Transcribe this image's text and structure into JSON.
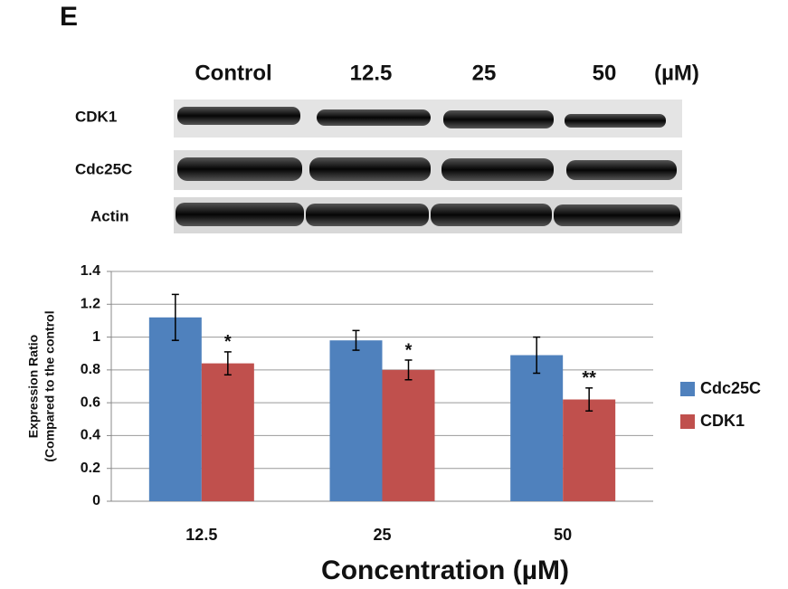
{
  "panel_label": "E",
  "blot": {
    "lanes": [
      "Control",
      "12.5",
      "25",
      "50"
    ],
    "unit": "(µM)",
    "rows": [
      "CDK1",
      "Cdc25C",
      "Actin"
    ]
  },
  "chart_data": {
    "type": "bar",
    "categories": [
      "12.5",
      "25",
      "50"
    ],
    "series": [
      {
        "name": "Cdc25C",
        "color": "#4f81bd",
        "values": [
          1.12,
          0.98,
          0.89
        ],
        "errors": [
          0.14,
          0.06,
          0.11
        ]
      },
      {
        "name": "CDK1",
        "color": "#c0504d",
        "values": [
          0.84,
          0.8,
          0.62
        ],
        "errors": [
          0.07,
          0.06,
          0.07
        ],
        "significance": [
          "*",
          "*",
          "**"
        ]
      }
    ],
    "ylabel": [
      "Expression  Ratio",
      "(Compared to the control"
    ],
    "xlabel": "Concentration (µM)",
    "ylim": [
      0,
      1.4
    ],
    "yticks": [
      0,
      0.2,
      0.4,
      0.6,
      0.8,
      1,
      1.2,
      1.4
    ],
    "grid": true,
    "legend": "right"
  }
}
